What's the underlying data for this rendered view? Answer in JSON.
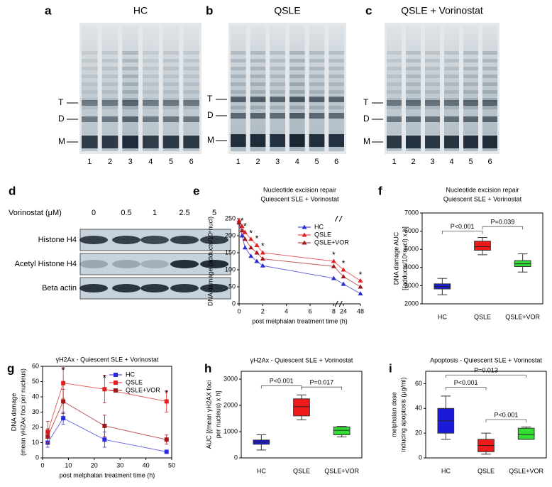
{
  "gels": [
    {
      "letter": "a",
      "title": "HC",
      "bands": [
        "T",
        "D",
        "M"
      ],
      "lanes": [
        "1",
        "2",
        "3",
        "4",
        "5",
        "6"
      ]
    },
    {
      "letter": "b",
      "title": "QSLE",
      "bands": [
        "T",
        "D",
        "M"
      ],
      "lanes": [
        "1",
        "2",
        "3",
        "4",
        "5",
        "6"
      ]
    },
    {
      "letter": "c",
      "title": "QSLE + Vorinostat",
      "bands": [
        "T",
        "D",
        "M"
      ],
      "lanes": [
        "1",
        "2",
        "3",
        "4",
        "5",
        "6"
      ]
    }
  ],
  "western": {
    "letter": "d",
    "treatment": "Vorinostat (μM)",
    "doses": [
      "0",
      "0.5",
      "1",
      "2.5",
      "5"
    ],
    "rows": [
      "Histone H4",
      "Acetyl Histone H4",
      "Beta actin"
    ]
  },
  "chart_data": [
    {
      "letter": "e",
      "type": "line",
      "title": [
        "Nucleotide excision repair",
        "Quiescent SLE + Vorinostat"
      ],
      "ylabel": [
        "DNA damage (adducts/10⁶nucl)"
      ],
      "xlabel": "post melphalan treatment time (h)",
      "x": [
        0,
        0.25,
        0.5,
        1,
        1.5,
        2,
        8,
        24,
        48
      ],
      "series": [
        {
          "name": "HC",
          "color": "#2a2ad0",
          "marker": "triangle",
          "values": [
            240,
            200,
            165,
            140,
            125,
            112,
            75,
            58,
            30
          ]
        },
        {
          "name": "QSLE",
          "color": "#e02020",
          "marker": "triangle",
          "values": [
            245,
            228,
            210,
            190,
            172,
            150,
            125,
            100,
            68
          ]
        },
        {
          "name": "QSLE+VOR",
          "color": "#a01818",
          "marker": "triangle",
          "values": [
            238,
            215,
            190,
            165,
            150,
            132,
            110,
            80,
            50
          ]
        }
      ],
      "xlim": [
        0,
        48
      ],
      "xticks": [
        0,
        2,
        4,
        6,
        8,
        24,
        48
      ],
      "axis_break": [
        8,
        24
      ],
      "ylim": [
        0,
        250
      ],
      "yticks": [
        0,
        50,
        100,
        150,
        200,
        250
      ],
      "legend": "upper right",
      "annotation_color": "#e02020",
      "annotations": [
        {
          "text": "*",
          "x": 0.25,
          "y": 242
        },
        {
          "text": "*",
          "x": 0.5,
          "y": 226
        },
        {
          "text": "*",
          "x": 1,
          "y": 206
        },
        {
          "text": "*",
          "x": 1.5,
          "y": 190
        },
        {
          "text": "*",
          "x": 2,
          "y": 168
        },
        {
          "text": "*",
          "x": 8,
          "y": 142
        },
        {
          "text": "*",
          "x": 24,
          "y": 117
        },
        {
          "text": "*",
          "x": 48,
          "y": 84
        }
      ]
    },
    {
      "letter": "f",
      "type": "box",
      "title": [
        "Nucleotide excision repair",
        "Quiescent SLE + Vorinostat"
      ],
      "ylabel": [
        "DNA damage AUC",
        "[(adducts/10⁶nucl) x h]"
      ],
      "categories": [
        "HC",
        "QSLE",
        "QSLE+VOR"
      ],
      "colors": [
        "#1a1ad8",
        "#ee1a1a",
        "#33dd33"
      ],
      "min": [
        2500,
        4700,
        3750
      ],
      "q1": [
        2820,
        4950,
        4050
      ],
      "median": [
        2950,
        5150,
        4200
      ],
      "q3": [
        3100,
        5450,
        4380
      ],
      "max": [
        3400,
        5650,
        4750
      ],
      "ylim": [
        2000,
        7000
      ],
      "yticks": [
        2000,
        3000,
        4000,
        5000,
        6000,
        7000
      ],
      "brackets": [
        {
          "pair": [
            0,
            1
          ],
          "y": 6000,
          "label": "P<0.001"
        },
        {
          "pair": [
            1,
            2
          ],
          "y": 6250,
          "label": "P=0.039"
        }
      ]
    },
    {
      "letter": "g",
      "type": "line",
      "title": [
        "γH2Ax - Quiescent SLE + Vorinostat"
      ],
      "ylabel": [
        "DNA damage",
        "(mean γH2Ax foci per nucleus)"
      ],
      "xlabel": "post melphalan treatment time (h)",
      "x": [
        2,
        8,
        24,
        48
      ],
      "series": [
        {
          "name": "HC",
          "color": "#2a2ae0",
          "marker": "square",
          "values": [
            10,
            26,
            12,
            4
          ],
          "errors": [
            3,
            4,
            5,
            1
          ]
        },
        {
          "name": "QSLE",
          "color": "#e02020",
          "marker": "square",
          "values": [
            17,
            49,
            45,
            37
          ],
          "errors": [
            7,
            10,
            9,
            7
          ]
        },
        {
          "name": "QSLE+VOR",
          "color": "#a01818",
          "marker": "square",
          "values": [
            14,
            37,
            21,
            12
          ],
          "errors": [
            5,
            8,
            7,
            3
          ]
        }
      ],
      "xlim": [
        0,
        50
      ],
      "xticks": [
        0,
        10,
        20,
        30,
        40,
        50
      ],
      "ylim": [
        0,
        60
      ],
      "yticks": [
        0,
        10,
        20,
        30,
        40,
        50,
        60
      ],
      "legend": "upper right",
      "annotation_color": "#e02020",
      "annotations": [
        {
          "text": "*",
          "x": 8,
          "y": 57
        },
        {
          "text": "*",
          "x": 24,
          "y": 52
        },
        {
          "text": "*",
          "x": 48,
          "y": 42
        }
      ]
    },
    {
      "letter": "h",
      "type": "box",
      "title": [
        "γH2Ax - Quiescent SLE + Vorinostat"
      ],
      "ylabel": [
        "AUC [(mean γH2AX foci",
        "per nucleus) x h]"
      ],
      "categories": [
        "HC",
        "QSLE",
        "QSLE+VOR"
      ],
      "colors": [
        "#1a1ad8",
        "#ee1a1a",
        "#33dd33"
      ],
      "min": [
        300,
        1450,
        800
      ],
      "q1": [
        520,
        1600,
        880
      ],
      "median": [
        600,
        1950,
        1050
      ],
      "q3": [
        680,
        2250,
        1180
      ],
      "max": [
        880,
        2400,
        1200
      ],
      "ylim": [
        0,
        3300
      ],
      "yticks": [
        0,
        1000,
        2000,
        3000
      ],
      "brackets": [
        {
          "pair": [
            0,
            1
          ],
          "y": 2750,
          "label": "P<0.001"
        },
        {
          "pair": [
            1,
            2
          ],
          "y": 2700,
          "label": "P=0.017"
        }
      ]
    },
    {
      "letter": "i",
      "type": "box",
      "title": [
        "Apoptosis - Quiescent SLE + Vorinostat"
      ],
      "ylabel": [
        "melphalan dose",
        "inducing apoptosis (μg/ml)"
      ],
      "categories": [
        "HC",
        "QSLE",
        "QSLE+VOR"
      ],
      "colors": [
        "#1a1ad8",
        "#ee1a1a",
        "#33dd33"
      ],
      "min": [
        15,
        3,
        15
      ],
      "q1": [
        20,
        5,
        15
      ],
      "median": [
        30,
        10,
        19
      ],
      "q3": [
        40,
        15,
        24
      ],
      "max": [
        50,
        20,
        25
      ],
      "ylim": [
        0,
        70
      ],
      "yticks": [
        0,
        20,
        40,
        60
      ],
      "brackets": [
        {
          "pair": [
            0,
            2
          ],
          "y": 67,
          "label": "P=0.013"
        },
        {
          "pair": [
            0,
            1
          ],
          "y": 57,
          "label": "P<0.001"
        },
        {
          "pair": [
            1,
            2
          ],
          "y": 31,
          "label": "P<0.001"
        }
      ]
    }
  ]
}
